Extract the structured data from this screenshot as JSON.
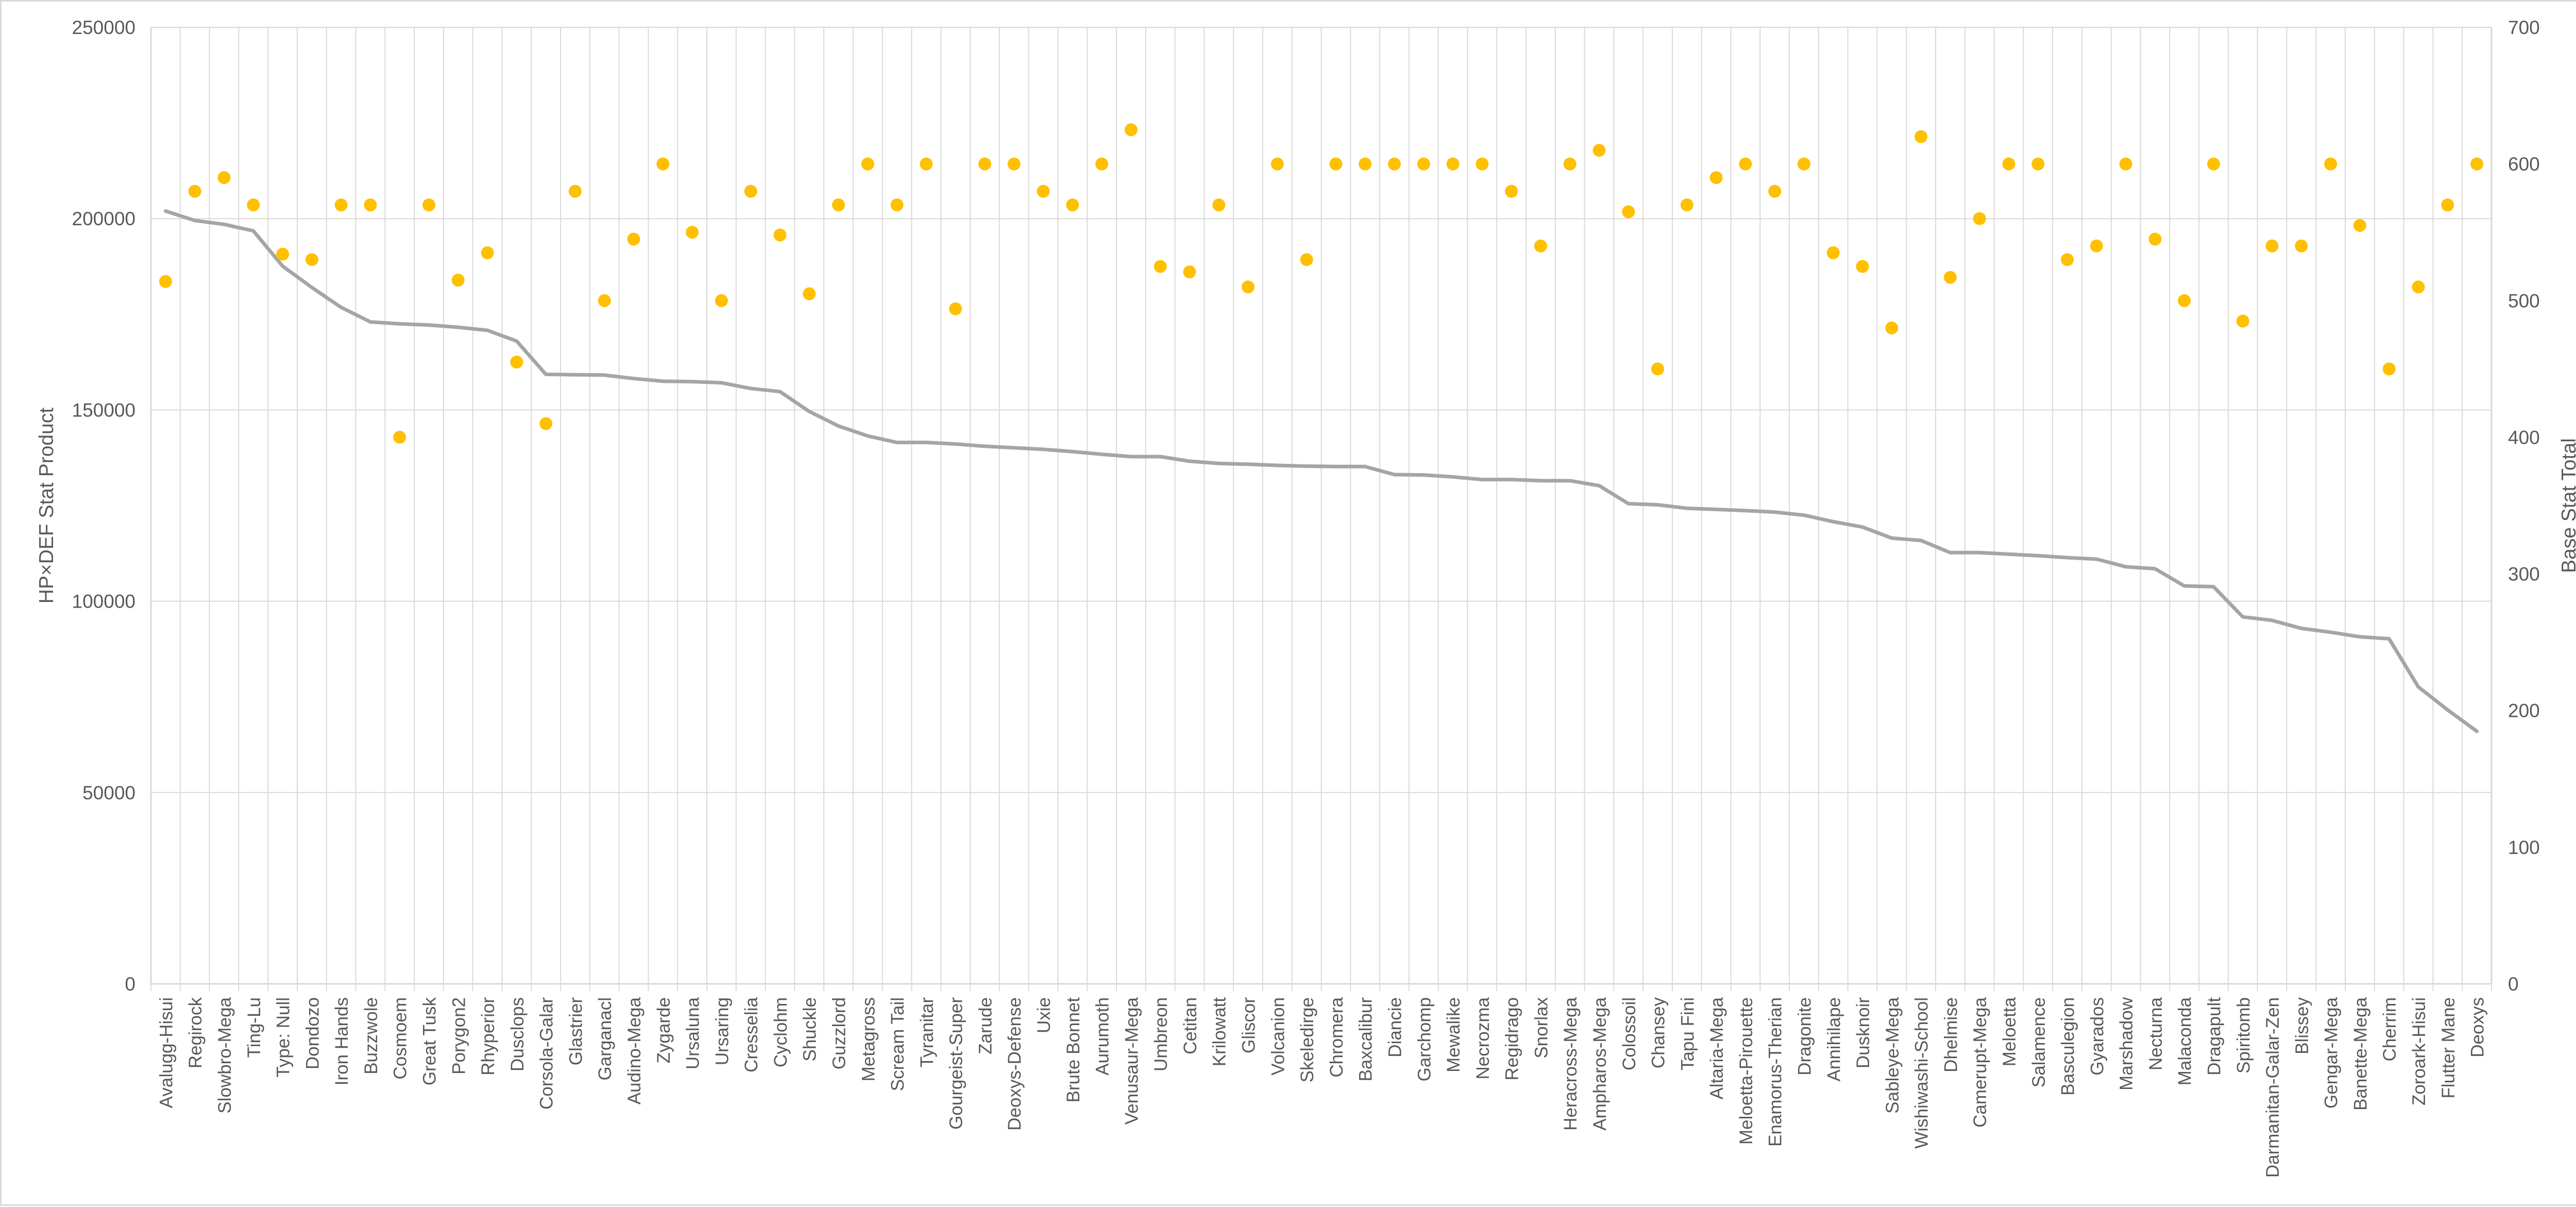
{
  "chart_data": {
    "type": "line",
    "combo": "line (left axis) + scatter markers (right axis)",
    "title": "",
    "xlabel": "",
    "ylabel": "HP×DEF Stat Product",
    "y2label": "Base Stat Total",
    "ylim": [
      0,
      250000
    ],
    "y2lim": [
      0,
      700
    ],
    "yticks": [
      0,
      50000,
      100000,
      150000,
      200000,
      250000
    ],
    "y2ticks": [
      0,
      100,
      200,
      300,
      400,
      500,
      600,
      700
    ],
    "grid": true,
    "legend": "none",
    "colors": {
      "line": "#a5a5a5",
      "markers": "#ffc000",
      "grid": "#d9d9d9",
      "text": "#595959"
    },
    "categories": [
      "Avalugg-Hisui",
      "Regirock",
      "Slowbro-Mega",
      "Ting-Lu",
      "Type: Null",
      "Dondozo",
      "Iron Hands",
      "Buzzwole",
      "Cosmoem",
      "Great Tusk",
      "Porygon2",
      "Rhyperior",
      "Dusclops",
      "Corsola-Galar",
      "Glastrier",
      "Garganacl",
      "Audino-Mega",
      "Zygarde",
      "Ursaluna",
      "Ursaring",
      "Cresselia",
      "Cyclohm",
      "Shuckle",
      "Guzzlord",
      "Metagross",
      "Scream Tail",
      "Tyranitar",
      "Gourgeist-Super",
      "Zarude",
      "Deoxys-Defense",
      "Uxie",
      "Brute Bonnet",
      "Aurumoth",
      "Venusaur-Mega",
      "Umbreon",
      "Cetitan",
      "Krilowatt",
      "Gliscor",
      "Volcanion",
      "Skeledirge",
      "Chromera",
      "Baxcalibur",
      "Diancie",
      "Garchomp",
      "Mewalike",
      "Necrozma",
      "Regidrago",
      "Snorlax",
      "Heracross-Mega",
      "Ampharos-Mega",
      "Colossoil",
      "Chansey",
      "Tapu Fini",
      "Altaria-Mega",
      "Meloetta-Pirouette",
      "Enamorus-Therian",
      "Dragonite",
      "Annihilape",
      "Dusknoir",
      "Sableye-Mega",
      "Wishiwashi-School",
      "Dhelmise",
      "Camerupt-Mega",
      "Meloetta",
      "Salamence",
      "Basculegion",
      "Gyarados",
      "Marshadow",
      "Necturna",
      "Malaconda",
      "Dragapult",
      "Spiritomb",
      "Darmanitan-Galar-Zen",
      "Blissey",
      "Gengar-Mega",
      "Banette-Mega",
      "Cherrim",
      "Zoroark-Hisui",
      "Flutter Mane",
      "Deoxys"
    ],
    "series": [
      {
        "name": "",
        "axis": "left",
        "kind": "line",
        "values": [
          202000,
          199500,
          198500,
          196800,
          187600,
          182000,
          176800,
          173000,
          172500,
          172200,
          171600,
          170800,
          168000,
          159300,
          159200,
          159100,
          158200,
          157500,
          157400,
          157100,
          155600,
          154800,
          149600,
          145800,
          143200,
          141500,
          141500,
          141100,
          140500,
          140100,
          139700,
          139100,
          138400,
          137800,
          137800,
          136600,
          136000,
          135800,
          135500,
          135300,
          135200,
          135200,
          133100,
          133000,
          132500,
          131800,
          131800,
          131500,
          131500,
          130200,
          125500,
          125200,
          124300,
          124000,
          123700,
          123300,
          122500,
          120800,
          119400,
          116500,
          115900,
          112700,
          112700,
          112300,
          111900,
          111400,
          111000,
          109000,
          108500,
          104000,
          103800,
          95900,
          95000,
          92900,
          91900,
          90700,
          90200,
          77600,
          71600,
          66000
        ]
      },
      {
        "name": "",
        "axis": "right",
        "kind": "scatter",
        "values": [
          514,
          580,
          590,
          570,
          534,
          530,
          570,
          570,
          400,
          570,
          515,
          535,
          455,
          410,
          580,
          500,
          545,
          600,
          550,
          500,
          580,
          548,
          505,
          570,
          600,
          570,
          600,
          494,
          600,
          600,
          580,
          570,
          600,
          625,
          525,
          521,
          570,
          510,
          600,
          530,
          600,
          600,
          600,
          600,
          600,
          600,
          580,
          540,
          600,
          610,
          565,
          450,
          570,
          590,
          600,
          580,
          600,
          535,
          525,
          480,
          620,
          517,
          560,
          600,
          600,
          530,
          540,
          600,
          545,
          500,
          600,
          485,
          540,
          540,
          600,
          555,
          450,
          510,
          570,
          600
        ]
      }
    ]
  }
}
